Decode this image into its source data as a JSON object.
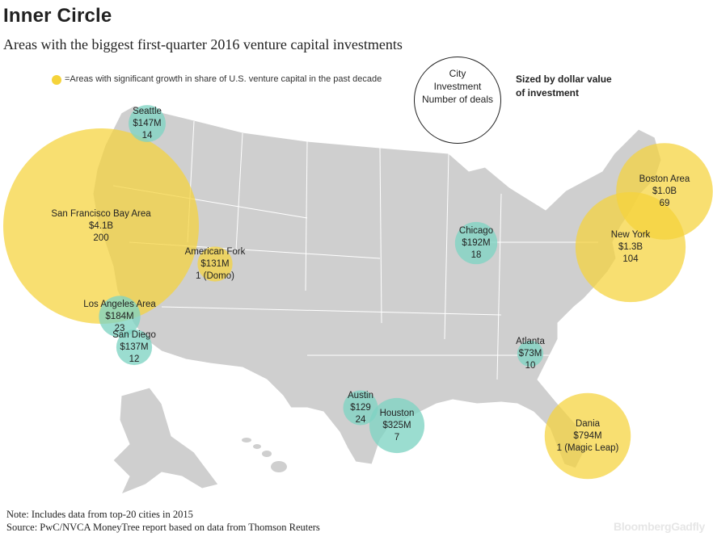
{
  "title": "Inner Circle",
  "subtitle": "Areas with the biggest first-quarter 2016 venture capital investments",
  "legend": {
    "growth_text": "=Areas with significant growth in share of U.S. venture capital in the past decade",
    "growth_color": "#f5d33a",
    "other_color": "#7fd3c3"
  },
  "key": {
    "line1": "City",
    "line2": "Investment",
    "line3": "Number of deals",
    "sized_line1": "Sized by dollar value",
    "sized_line2": "of investment"
  },
  "notes": {
    "note": "Note: Includes data from top-20 cities in 2015",
    "source": "Source: PwC/NVCA MoneyTree report based on data from Thomson Reuters"
  },
  "brand": {
    "part1": "Bloomberg",
    "part2": "Gadfly"
  },
  "chart_data": {
    "type": "bubble-map",
    "title": "Inner Circle",
    "subtitle": "Areas with the biggest first-quarter 2016 venture capital investments",
    "size_encoding": "Sized by dollar value of investment",
    "points": [
      {
        "city": "San Francisco Bay Area",
        "investment": "$4.1B",
        "deals": "200",
        "investment_musd": 4100,
        "deals_n": 200,
        "growth": true
      },
      {
        "city": "New York",
        "investment": "$1.3B",
        "deals": "104",
        "investment_musd": 1300,
        "deals_n": 104,
        "growth": true
      },
      {
        "city": "Boston Area",
        "investment": "$1.0B",
        "deals": "69",
        "investment_musd": 1000,
        "deals_n": 69,
        "growth": true
      },
      {
        "city": "Dania",
        "investment": "$794M",
        "deals": "1 (Magic Leap)",
        "investment_musd": 794,
        "deals_n": 1,
        "growth": true
      },
      {
        "city": "Houston",
        "investment": "$325M",
        "deals": "7",
        "investment_musd": 325,
        "deals_n": 7,
        "growth": false
      },
      {
        "city": "Chicago",
        "investment": "$192M",
        "deals": "18",
        "investment_musd": 192,
        "deals_n": 18,
        "growth": false
      },
      {
        "city": "Los Angeles Area",
        "investment": "$184M",
        "deals": "23",
        "investment_musd": 184,
        "deals_n": 23,
        "growth": false
      },
      {
        "city": "Seattle",
        "investment": "$147M",
        "deals": "14",
        "investment_musd": 147,
        "deals_n": 14,
        "growth": false
      },
      {
        "city": "San Diego",
        "investment": "$137M",
        "deals": "12",
        "investment_musd": 137,
        "deals_n": 12,
        "growth": false
      },
      {
        "city": "American Fork",
        "investment": "$131M",
        "deals": "1 (Domo)",
        "investment_musd": 131,
        "deals_n": 1,
        "growth": true
      },
      {
        "city": "Austin",
        "investment": "$129",
        "deals": "24",
        "investment_musd": 129,
        "deals_n": 24,
        "growth": false
      },
      {
        "city": "Atlanta",
        "investment": "$73M",
        "deals": "10",
        "investment_musd": 73,
        "deals_n": 10,
        "growth": false
      }
    ]
  }
}
